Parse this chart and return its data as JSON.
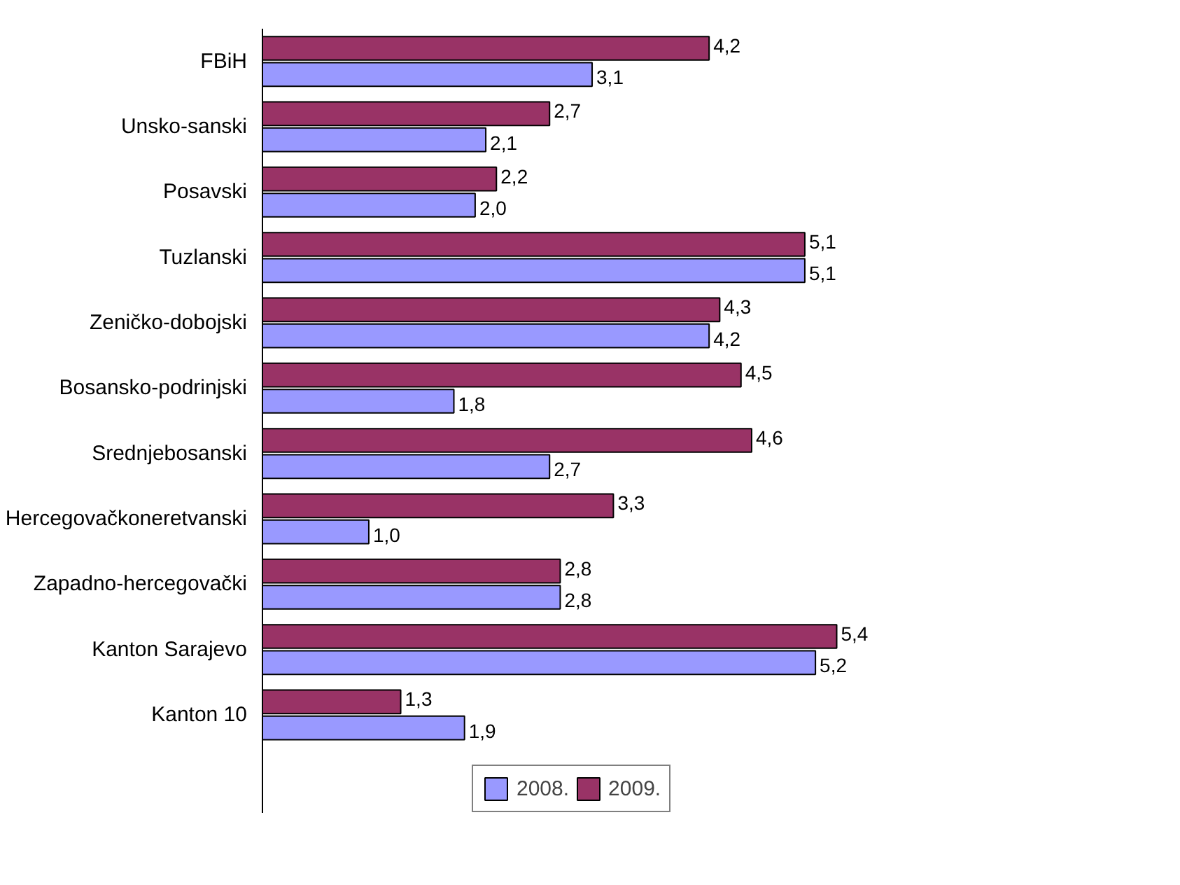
{
  "chart_data": {
    "type": "bar",
    "orientation": "horizontal",
    "categories": [
      "FBiH",
      "Unsko-sanski",
      "Posavski",
      "Tuzlanski",
      "Zeničko-dobojski",
      "Bosansko-podrinjski",
      "Srednjebosanski",
      "Hercegovačkoneretvanski",
      "Zapadno-hercegovački",
      "Kanton Sarajevo",
      "Kanton 10"
    ],
    "series": [
      {
        "name": "2008.",
        "color": "#9999ff",
        "values": [
          3.1,
          2.1,
          2.0,
          5.1,
          4.2,
          1.8,
          2.7,
          1.0,
          2.8,
          5.2,
          1.9
        ],
        "value_labels": [
          "3,1",
          "2,1",
          "2,0",
          "5,1",
          "4,2",
          "1,8",
          "2,7",
          "1,0",
          "2,8",
          "5,2",
          "1,9"
        ]
      },
      {
        "name": "2009.",
        "color": "#993366",
        "values": [
          4.2,
          2.7,
          2.2,
          5.1,
          4.3,
          4.5,
          4.6,
          3.3,
          2.8,
          5.4,
          1.3
        ],
        "value_labels": [
          "4,2",
          "2,7",
          "2,2",
          "5,1",
          "4,3",
          "4,5",
          "4,6",
          "3,3",
          "2,8",
          "5,4",
          "1,3"
        ]
      }
    ],
    "legend": "bottom",
    "grid": false,
    "tick_labels": "y"
  }
}
